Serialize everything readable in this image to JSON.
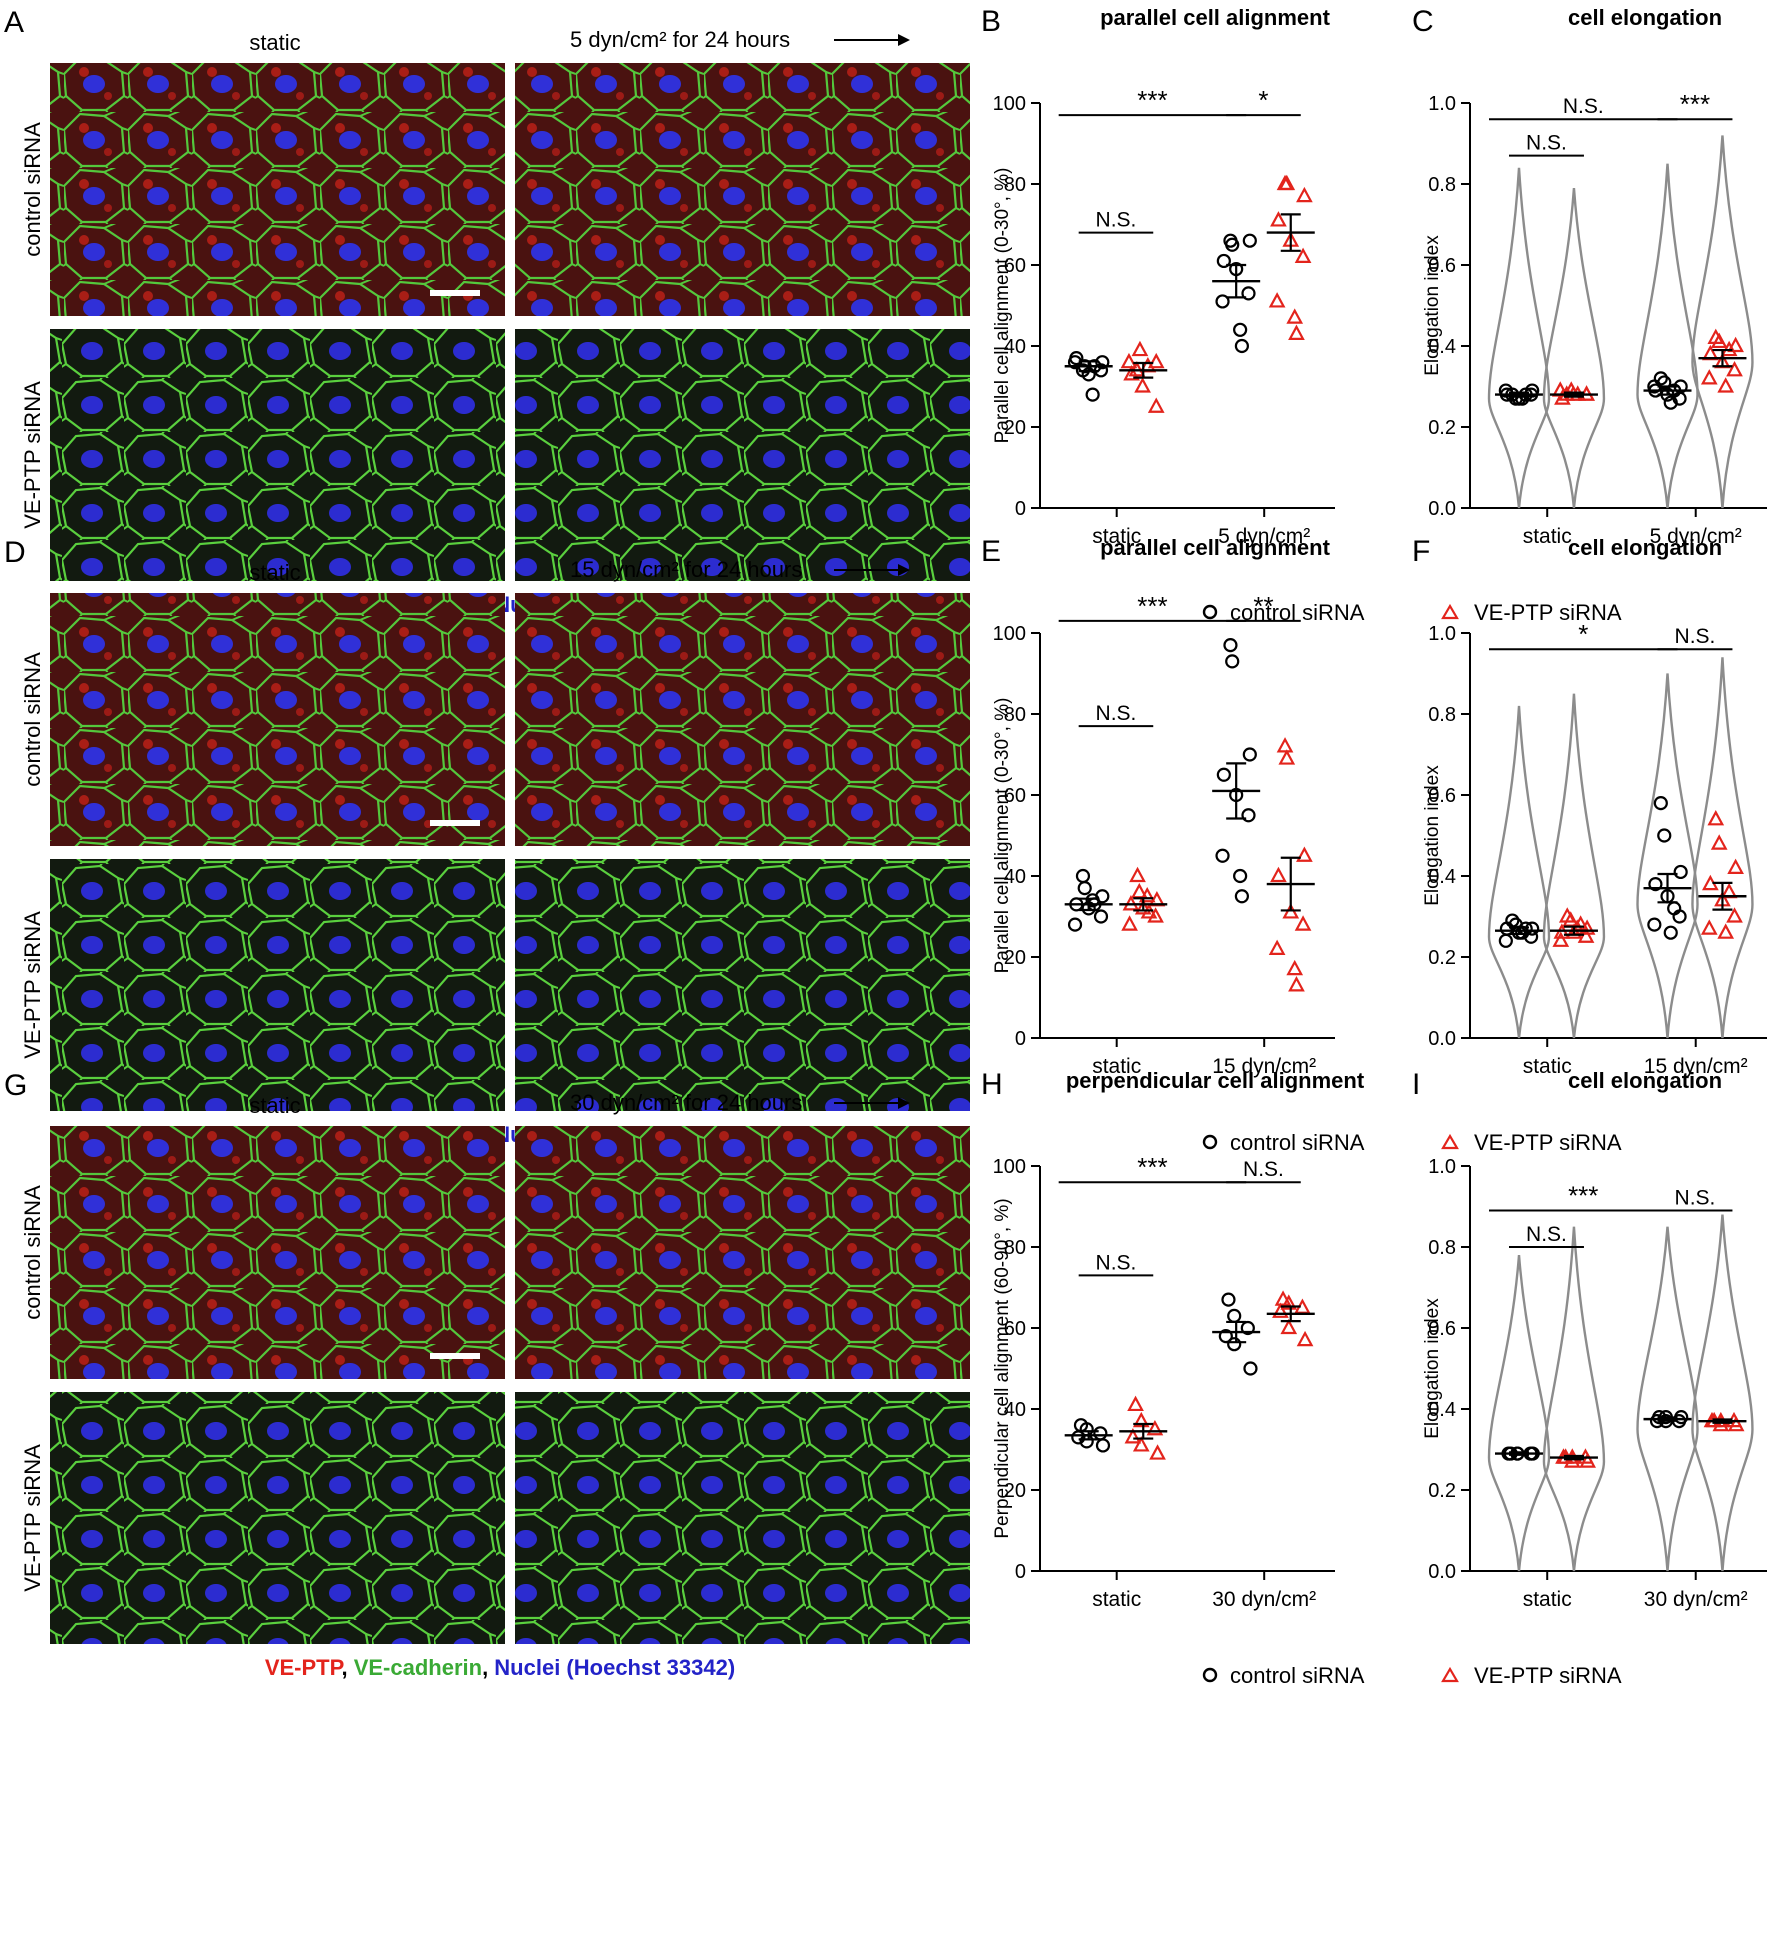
{
  "colors": {
    "control": "#000000",
    "vep": "#e3241c",
    "violin": "#8c8c8c",
    "ve_ptp_stain": "#e3241c",
    "cadherin_stain": "#3aaa35",
    "nuclei_stain": "#2323c8",
    "micro_red_bg": "#5a1414",
    "micro_green_bg": "#14240f"
  },
  "legend": {
    "control": "control siRNA",
    "vep": "VE-PTP siRNA"
  },
  "row_labels": {
    "top": "control siRNA",
    "bottom": "VE-PTP siRNA"
  },
  "stain_caption": {
    "ve_ptp": "VE-PTP",
    "comma": ",",
    "cadherin": "VE-cadherin",
    "nuclei": "Nuclei (Hoechst 33342)"
  },
  "panels": [
    {
      "micro_letter": "A",
      "static_label": "static",
      "flow_label": "5 dyn/cm² for 24 hours",
      "align": {
        "letter": "B",
        "title": "parallel cell alignment",
        "ylabel": "Parallel cell alignment  (0-30°, %)",
        "ylim": [
          0,
          100
        ],
        "yticks": [
          "0",
          "20",
          "40",
          "60",
          "80",
          "100"
        ],
        "categories": [
          "static",
          "5 dyn/cm²"
        ],
        "series": [
          {
            "name": "control siRNA",
            "group": 0,
            "mean": 35,
            "sem": 1.2,
            "points": [
              34,
              35,
              36,
              37,
              33,
              34,
              36,
              28,
              35
            ]
          },
          {
            "name": "VE-PTP siRNA",
            "group": 0,
            "mean": 34,
            "sem": 1.8,
            "points": [
              34,
              39,
              36,
              33,
              30,
              25,
              36,
              35
            ]
          },
          {
            "name": "control siRNA",
            "group": 1,
            "mean": 56,
            "sem": 4,
            "points": [
              66,
              65,
              66,
              61,
              59,
              53,
              51,
              44,
              40
            ]
          },
          {
            "name": "VE-PTP siRNA",
            "group": 1,
            "mean": 68,
            "sem": 4.5,
            "points": [
              80,
              80,
              77,
              71,
              66,
              62,
              51,
              47,
              43
            ]
          }
        ],
        "significance": [
          {
            "label": "N.S.",
            "from": 0,
            "to": 1,
            "group_pair": false,
            "group": 0,
            "level": 68
          },
          {
            "label": "***",
            "from": 0,
            "to": 1,
            "group_pair": true,
            "level": 97
          },
          {
            "label": "*",
            "from": 0,
            "to": 1,
            "group_pair": false,
            "group": 1,
            "level": 97
          }
        ]
      },
      "elong": {
        "letter": "C",
        "title": "cell elongation",
        "ylabel": "Elongation index",
        "ylim": [
          0,
          1
        ],
        "yticks": [
          "0.0",
          "0.2",
          "0.4",
          "0.6",
          "0.8",
          "1.0"
        ],
        "categories": [
          "static",
          "5 dyn/cm²"
        ],
        "series": [
          {
            "name": "control siRNA",
            "group": 0,
            "mean": 0.28,
            "sem": 0.005,
            "vmax": 0.84,
            "peak": 0.27,
            "points": [
              0.28,
              0.27,
              0.29,
              0.28,
              0.27,
              0.28,
              0.29,
              0.27,
              0.28
            ]
          },
          {
            "name": "VE-PTP siRNA",
            "group": 0,
            "mean": 0.28,
            "sem": 0.005,
            "vmax": 0.79,
            "peak": 0.27,
            "points": [
              0.28,
              0.29,
              0.28,
              0.27,
              0.28,
              0.28,
              0.29,
              0.28
            ]
          },
          {
            "name": "control siRNA",
            "group": 1,
            "mean": 0.29,
            "sem": 0.01,
            "vmax": 0.85,
            "peak": 0.28,
            "points": [
              0.32,
              0.31,
              0.3,
              0.29,
              0.28,
              0.27,
              0.3,
              0.26,
              0.29
            ]
          },
          {
            "name": "VE-PTP siRNA",
            "group": 1,
            "mean": 0.37,
            "sem": 0.02,
            "vmax": 0.92,
            "peak": 0.36,
            "points": [
              0.42,
              0.41,
              0.4,
              0.38,
              0.36,
              0.34,
              0.32,
              0.3,
              0.39
            ]
          }
        ],
        "significance": [
          {
            "label": "N.S.",
            "from": 0,
            "to": 1,
            "group_pair": false,
            "group": 0,
            "level": 0.87
          },
          {
            "label": "N.S.",
            "from": 0,
            "to": 1,
            "group_pair": true,
            "level": 0.96
          },
          {
            "label": "***",
            "from": 0,
            "to": 1,
            "group_pair": false,
            "group": 1,
            "level": 0.96
          }
        ]
      }
    },
    {
      "micro_letter": "D",
      "static_label": "static",
      "flow_label": "15 dyn/cm² for 24 hours",
      "align": {
        "letter": "E",
        "title": "parallel cell alignment",
        "ylabel": "Parallel cell alignment  (0-30°, %)",
        "ylim": [
          0,
          100
        ],
        "yticks": [
          "0",
          "20",
          "40",
          "60",
          "80",
          "100"
        ],
        "categories": [
          "static",
          "15 dyn/cm²"
        ],
        "series": [
          {
            "name": "control siRNA",
            "group": 0,
            "mean": 33,
            "sem": 1.4,
            "points": [
              40,
              37,
              35,
              33,
              32,
              30,
              28,
              34,
              33
            ]
          },
          {
            "name": "VE-PTP siRNA",
            "group": 0,
            "mean": 33,
            "sem": 1.5,
            "points": [
              40,
              36,
              34,
              33,
              32,
              30,
              28,
              35,
              31
            ]
          },
          {
            "name": "control siRNA",
            "group": 1,
            "mean": 61,
            "sem": 6.8,
            "points": [
              97,
              93,
              70,
              65,
              60,
              55,
              45,
              40,
              35
            ]
          },
          {
            "name": "VE-PTP siRNA",
            "group": 1,
            "mean": 38,
            "sem": 6.5,
            "points": [
              72,
              69,
              45,
              40,
              31,
              28,
              22,
              17,
              13
            ]
          }
        ],
        "significance": [
          {
            "label": "N.S.",
            "from": 0,
            "to": 1,
            "group_pair": false,
            "group": 0,
            "level": 77
          },
          {
            "label": "***",
            "from": 0,
            "to": 1,
            "group_pair": true,
            "level": 103
          },
          {
            "label": "**",
            "from": 0,
            "to": 1,
            "group_pair": false,
            "group": 1,
            "level": 103
          }
        ]
      },
      "elong": {
        "letter": "F",
        "title": "cell elongation",
        "ylabel": "Elongation index",
        "ylim": [
          0,
          1
        ],
        "yticks": [
          "0.0",
          "0.2",
          "0.4",
          "0.6",
          "0.8",
          "1.0"
        ],
        "categories": [
          "static",
          "15 dyn/cm²"
        ],
        "series": [
          {
            "name": "control siRNA",
            "group": 0,
            "mean": 0.265,
            "sem": 0.008,
            "vmax": 0.82,
            "peak": 0.25,
            "points": [
              0.29,
              0.28,
              0.27,
              0.27,
              0.26,
              0.25,
              0.24,
              0.26,
              0.27
            ]
          },
          {
            "name": "VE-PTP siRNA",
            "group": 0,
            "mean": 0.265,
            "sem": 0.01,
            "vmax": 0.85,
            "peak": 0.25,
            "points": [
              0.3,
              0.29,
              0.27,
              0.26,
              0.26,
              0.25,
              0.24,
              0.27,
              0.28
            ]
          },
          {
            "name": "control siRNA",
            "group": 1,
            "mean": 0.37,
            "sem": 0.035,
            "vmax": 0.9,
            "peak": 0.33,
            "points": [
              0.58,
              0.5,
              0.41,
              0.38,
              0.35,
              0.3,
              0.28,
              0.26,
              0.32
            ]
          },
          {
            "name": "VE-PTP siRNA",
            "group": 1,
            "mean": 0.35,
            "sem": 0.033,
            "vmax": 0.94,
            "peak": 0.33,
            "points": [
              0.54,
              0.48,
              0.42,
              0.38,
              0.34,
              0.3,
              0.27,
              0.26,
              0.36
            ]
          }
        ],
        "significance": [
          {
            "label": "*",
            "from": 0,
            "to": 1,
            "group_pair": true,
            "level": 0.96
          },
          {
            "label": "N.S.",
            "from": 0,
            "to": 1,
            "group_pair": false,
            "group": 1,
            "level": 0.96
          }
        ]
      }
    },
    {
      "micro_letter": "G",
      "static_label": "static",
      "flow_label": "30 dyn/cm² for 24 hours",
      "align": {
        "letter": "H",
        "title": "perpendicular cell alignment",
        "ylabel": "Perpendicular cell  alignment (60-90°, %)",
        "ylim": [
          0,
          100
        ],
        "yticks": [
          "0",
          "20",
          "40",
          "60",
          "80",
          "100"
        ],
        "categories": [
          "static",
          "30 dyn/cm²"
        ],
        "series": [
          {
            "name": "control siRNA",
            "group": 0,
            "mean": 33.5,
            "sem": 1,
            "points": [
              36,
              35,
              34,
              33,
              32,
              31
            ]
          },
          {
            "name": "VE-PTP siRNA",
            "group": 0,
            "mean": 34.5,
            "sem": 1.8,
            "points": [
              41,
              37,
              35,
              33,
              31,
              29
            ]
          },
          {
            "name": "control siRNA",
            "group": 1,
            "mean": 59,
            "sem": 2.5,
            "points": [
              67,
              63,
              60,
              58,
              56,
              50
            ]
          },
          {
            "name": "VE-PTP siRNA",
            "group": 1,
            "mean": 63.5,
            "sem": 1.8,
            "points": [
              67,
              66,
              65,
              64,
              60,
              57
            ]
          }
        ],
        "significance": [
          {
            "label": "N.S.",
            "from": 0,
            "to": 1,
            "group_pair": false,
            "group": 0,
            "level": 73
          },
          {
            "label": "***",
            "from": 0,
            "to": 1,
            "group_pair": true,
            "level": 96
          },
          {
            "label": "N.S.",
            "from": 0,
            "to": 1,
            "group_pair": false,
            "group": 1,
            "level": 96
          }
        ]
      },
      "elong": {
        "letter": "I",
        "title": "cell elongation",
        "ylabel": "Elongation index",
        "ylim": [
          0,
          1
        ],
        "yticks": [
          "0.0",
          "0.2",
          "0.4",
          "0.6",
          "0.8",
          "1.0"
        ],
        "categories": [
          "static",
          "30 dyn/cm²"
        ],
        "series": [
          {
            "name": "control siRNA",
            "group": 0,
            "mean": 0.29,
            "sem": 0.003,
            "vmax": 0.78,
            "peak": 0.28,
            "points": [
              0.29,
              0.29,
              0.29,
              0.29,
              0.29,
              0.29
            ]
          },
          {
            "name": "VE-PTP siRNA",
            "group": 0,
            "mean": 0.28,
            "sem": 0.004,
            "vmax": 0.85,
            "peak": 0.27,
            "points": [
              0.28,
              0.28,
              0.28,
              0.28,
              0.27,
              0.27
            ]
          },
          {
            "name": "control siRNA",
            "group": 1,
            "mean": 0.375,
            "sem": 0.004,
            "vmax": 0.85,
            "peak": 0.35,
            "points": [
              0.38,
              0.38,
              0.37,
              0.37,
              0.37,
              0.38
            ]
          },
          {
            "name": "VE-PTP siRNA",
            "group": 1,
            "mean": 0.37,
            "sem": 0.004,
            "vmax": 0.88,
            "peak": 0.35,
            "points": [
              0.37,
              0.37,
              0.37,
              0.37,
              0.36,
              0.36
            ]
          }
        ],
        "significance": [
          {
            "label": "N.S.",
            "from": 0,
            "to": 1,
            "group_pair": false,
            "group": 0,
            "level": 0.8
          },
          {
            "label": "***",
            "from": 0,
            "to": 1,
            "group_pair": true,
            "level": 0.89
          },
          {
            "label": "N.S.",
            "from": 0,
            "to": 1,
            "group_pair": false,
            "group": 1,
            "level": 0.89
          }
        ]
      }
    }
  ]
}
